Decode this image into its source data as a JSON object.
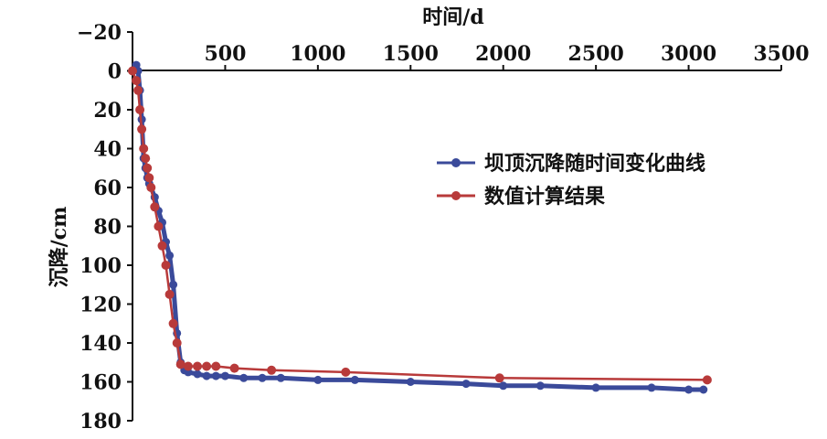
{
  "chart_data": {
    "type": "line",
    "xlabel": "时间/d",
    "ylabel": "沉降/cm",
    "xlim": [
      0,
      3500
    ],
    "ylim": [
      -20,
      180
    ],
    "x_axis_position": "top",
    "y_axis_inverted": true,
    "grid": false,
    "legend_position": "right",
    "x_ticks": [
      "500",
      "1000",
      "1500",
      "2000",
      "2500",
      "3000",
      "3500"
    ],
    "y_ticks": [
      "-20",
      "0",
      "20",
      "40",
      "60",
      "80",
      "100",
      "120",
      "140",
      "160",
      "180"
    ],
    "series": [
      {
        "name": "坝顶沉降随时间变化曲线",
        "color": "#3a4a9a",
        "x": [
          0,
          20,
          30,
          40,
          50,
          60,
          70,
          80,
          90,
          100,
          120,
          140,
          160,
          180,
          200,
          220,
          240,
          260,
          280,
          300,
          350,
          400,
          450,
          500,
          600,
          700,
          800,
          1000,
          1200,
          1500,
          1800,
          2000,
          2200,
          2500,
          2800,
          3000,
          3080
        ],
        "y": [
          0,
          -3,
          0,
          10,
          25,
          45,
          50,
          55,
          58,
          60,
          65,
          72,
          78,
          88,
          95,
          110,
          135,
          150,
          154,
          155,
          156,
          157,
          157,
          157,
          158,
          158,
          158,
          159,
          159,
          160,
          161,
          162,
          162,
          163,
          163,
          164,
          164
        ]
      },
      {
        "name": "数值计算结果",
        "color": "#b83a3a",
        "x": [
          0,
          20,
          30,
          40,
          50,
          60,
          70,
          80,
          90,
          100,
          120,
          140,
          160,
          180,
          200,
          220,
          240,
          260,
          300,
          350,
          400,
          450,
          550,
          750,
          1150,
          1980,
          3100
        ],
        "y": [
          0,
          5,
          10,
          20,
          30,
          40,
          45,
          50,
          55,
          60,
          70,
          80,
          90,
          100,
          115,
          130,
          140,
          151,
          152,
          152,
          152,
          152,
          153,
          154,
          155,
          158,
          159
        ]
      }
    ]
  }
}
